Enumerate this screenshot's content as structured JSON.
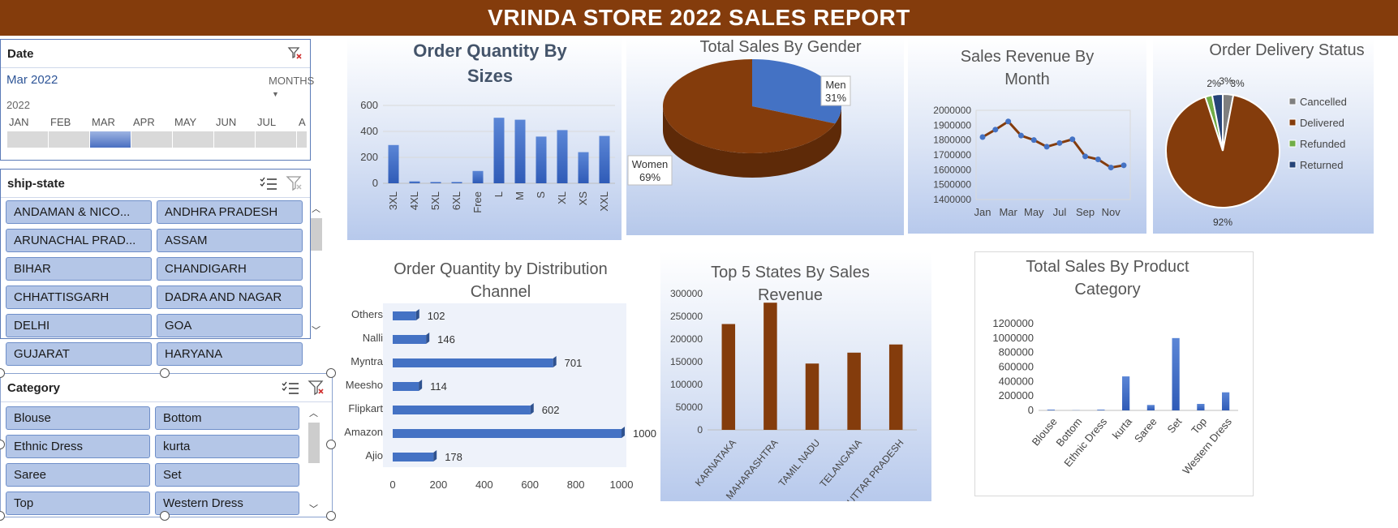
{
  "header": {
    "title": "VRINDA STORE 2022 SALES REPORT"
  },
  "colors": {
    "brand_brown": "#843c0c",
    "bar_blue": "#4472c4",
    "tile_blue": "#b4c6e7"
  },
  "date_slicer": {
    "title": "Date",
    "selected": "Mar 2022",
    "period_dropdown": "MONTHS",
    "year": "2022",
    "months": [
      "JAN",
      "FEB",
      "MAR",
      "APR",
      "MAY",
      "JUN",
      "JUL",
      "A"
    ],
    "selected_month": "MAR",
    "icons": [
      "clear-filter-icon"
    ]
  },
  "ship_state_slicer": {
    "title": "ship-state",
    "items": [
      "ANDAMAN & NICO...",
      "ANDHRA PRADESH",
      "ARUNACHAL PRAD...",
      "ASSAM",
      "BIHAR",
      "CHANDIGARH",
      "CHHATTISGARH",
      "DADRA AND NAGAR",
      "DELHI",
      "GOA",
      "GUJARAT",
      "HARYANA"
    ],
    "icons": [
      "multi-select-icon",
      "clear-filter-icon"
    ]
  },
  "category_slicer": {
    "title": "Category",
    "items": [
      "Blouse",
      "Bottom",
      "Ethnic Dress",
      "kurta",
      "Saree",
      "Set",
      "Top",
      "Western Dress"
    ],
    "icons": [
      "multi-select-icon",
      "clear-filter-icon"
    ]
  },
  "chart_data": [
    {
      "id": "sizes",
      "type": "bar",
      "title_lines": [
        "Order Quantity By",
        "Sizes"
      ],
      "categories": [
        "3XL",
        "4XL",
        "5XL",
        "6XL",
        "Free",
        "L",
        "M",
        "S",
        "XL",
        "XS",
        "XXL"
      ],
      "values": [
        295,
        15,
        10,
        10,
        95,
        505,
        490,
        360,
        410,
        240,
        365
      ],
      "ylim": [
        0,
        600
      ],
      "yticks": [
        "0",
        "200",
        "400",
        "600"
      ],
      "grid": true
    },
    {
      "id": "gender",
      "type": "pie",
      "title_lines": [
        "Total Sales By Gender"
      ],
      "slices": [
        {
          "label": "Men",
          "pct_label": "31%",
          "value": 31,
          "color": "#4472c4"
        },
        {
          "label": "Women",
          "pct_label": "69%",
          "value": 69,
          "color": "#843c0c"
        }
      ]
    },
    {
      "id": "month",
      "type": "line",
      "title_lines": [
        "Sales Revenue By",
        "Month"
      ],
      "categories": [
        "Jan",
        "Feb",
        "Mar",
        "Apr",
        "May",
        "Jun",
        "Jul",
        "Aug",
        "Sep",
        "Oct",
        "Nov",
        "Dec"
      ],
      "xticks": [
        "Jan",
        "Mar",
        "May",
        "Jul",
        "Sep",
        "Nov"
      ],
      "values": [
        1820000,
        1870000,
        1925000,
        1830000,
        1800000,
        1755000,
        1780000,
        1805000,
        1690000,
        1670000,
        1615000,
        1630000
      ],
      "ylim": [
        1400000,
        2000000
      ],
      "yticks": [
        "1400000",
        "1500000",
        "1600000",
        "1700000",
        "1800000",
        "1900000",
        "2000000"
      ]
    },
    {
      "id": "delivery",
      "type": "pie",
      "title_lines": [
        "Order Delivery Status"
      ],
      "slices": [
        {
          "label": "Cancelled",
          "pct_label": "3%",
          "value": 3,
          "color": "#7f7f7f"
        },
        {
          "label": "Delivered",
          "pct_label": "92%",
          "value": 92,
          "color": "#843c0c"
        },
        {
          "label": "Refunded",
          "pct_label": "2%",
          "value": 2,
          "color": "#70ad47"
        },
        {
          "label": "Returned",
          "pct_label": "3%",
          "value": 3,
          "color": "#264478"
        }
      ],
      "legend": "right"
    },
    {
      "id": "channel",
      "type": "bar",
      "orientation": "horizontal",
      "title_lines": [
        "Order Quantity by Distribution",
        "Channel"
      ],
      "categories": [
        "Others",
        "Nalli",
        "Myntra",
        "Meesho",
        "Flipkart",
        "Amazon",
        "Ajio"
      ],
      "values": [
        102,
        146,
        701,
        114,
        602,
        1000,
        178
      ],
      "data_labels": [
        "102",
        "146",
        "701",
        "114",
        "602",
        "1000",
        "178"
      ],
      "xlim": [
        0,
        1000
      ],
      "xticks": [
        "0",
        "200",
        "400",
        "600",
        "800",
        "1000"
      ]
    },
    {
      "id": "states",
      "type": "bar",
      "title_lines": [
        "Top 5 States By Sales",
        "Revenue"
      ],
      "categories": [
        "KARNATAKA",
        "MAHARASHTRA",
        "TAMIL NADU",
        "TELANGANA",
        "UTTAR PRADESH"
      ],
      "values": [
        233000,
        280000,
        146000,
        170000,
        188000
      ],
      "ylim": [
        0,
        300000
      ],
      "yticks": [
        "0",
        "50000",
        "100000",
        "150000",
        "200000",
        "250000",
        "300000"
      ]
    },
    {
      "id": "category",
      "type": "bar",
      "title_lines": [
        "Total Sales By Product",
        "Category"
      ],
      "categories": [
        "Blouse",
        "Bottom",
        "Ethnic Dress",
        "kurta",
        "Saree",
        "Set",
        "Top",
        "Western Dress"
      ],
      "values": [
        10000,
        3000,
        10000,
        470000,
        75000,
        1000000,
        90000,
        250000
      ],
      "ylim": [
        0,
        1200000
      ],
      "yticks": [
        "0",
        "200000",
        "400000",
        "600000",
        "800000",
        "1000000",
        "1200000"
      ]
    }
  ]
}
